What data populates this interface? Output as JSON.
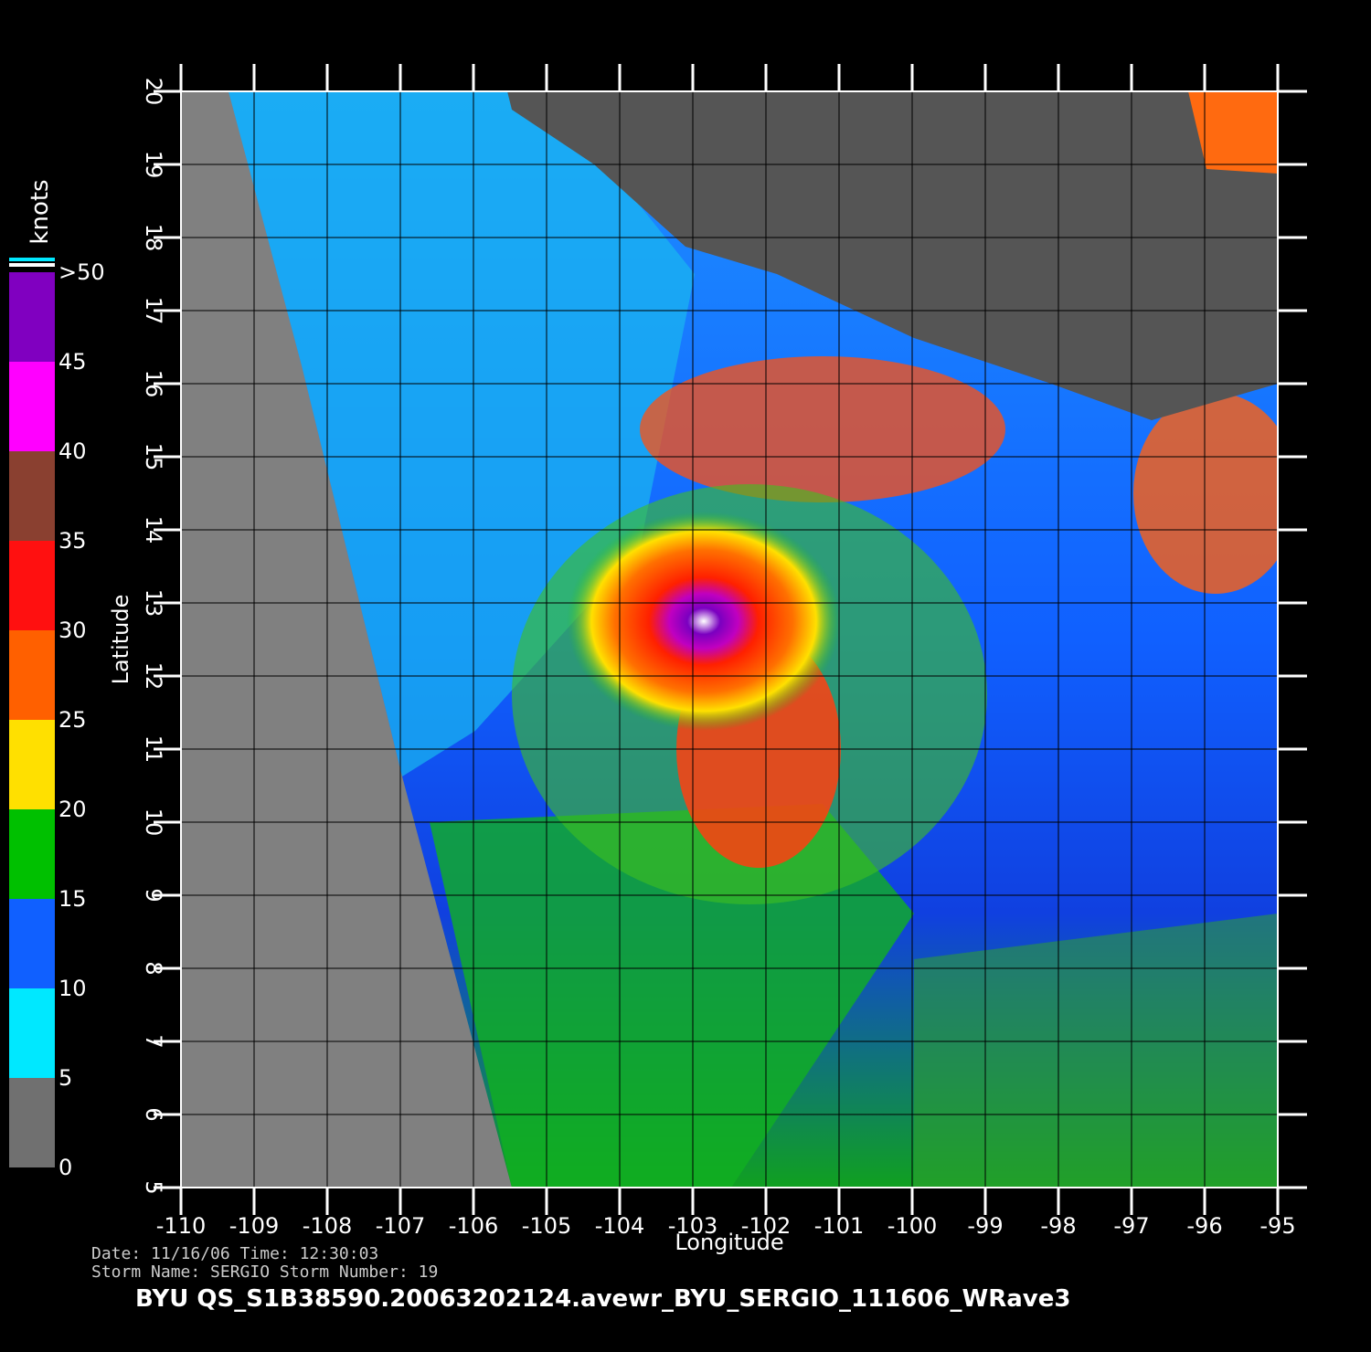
{
  "map": {
    "x_label": "Longitude",
    "y_label": "Latitude",
    "xlim": [
      -110,
      -95
    ],
    "ylim": [
      5,
      20
    ],
    "xticks": [
      -110,
      -109,
      -108,
      -107,
      -106,
      -105,
      -104,
      -103,
      -102,
      -101,
      -100,
      -99,
      -98,
      -97,
      -96,
      -95
    ],
    "yticks": [
      5,
      6,
      7,
      8,
      9,
      10,
      11,
      12,
      13,
      14,
      15,
      16,
      17,
      18,
      19,
      20
    ],
    "grid": true,
    "colorbar": {
      "unit": "knots",
      "lim": [
        0,
        50
      ],
      "ticks": [
        0,
        5,
        10,
        15,
        20,
        25,
        30,
        35,
        40,
        45,
        {
          "value": 50,
          "label": ">50"
        }
      ]
    },
    "footer": {
      "line1": "Date: 11/16/06   Time: 12:30:03",
      "line2": "Storm Name: SERGIO   Storm Number: 19",
      "title": "BYU  QS_S1B38590.20063202124.avewr_BYU_SERGIO_111606_WRave3"
    }
  }
}
